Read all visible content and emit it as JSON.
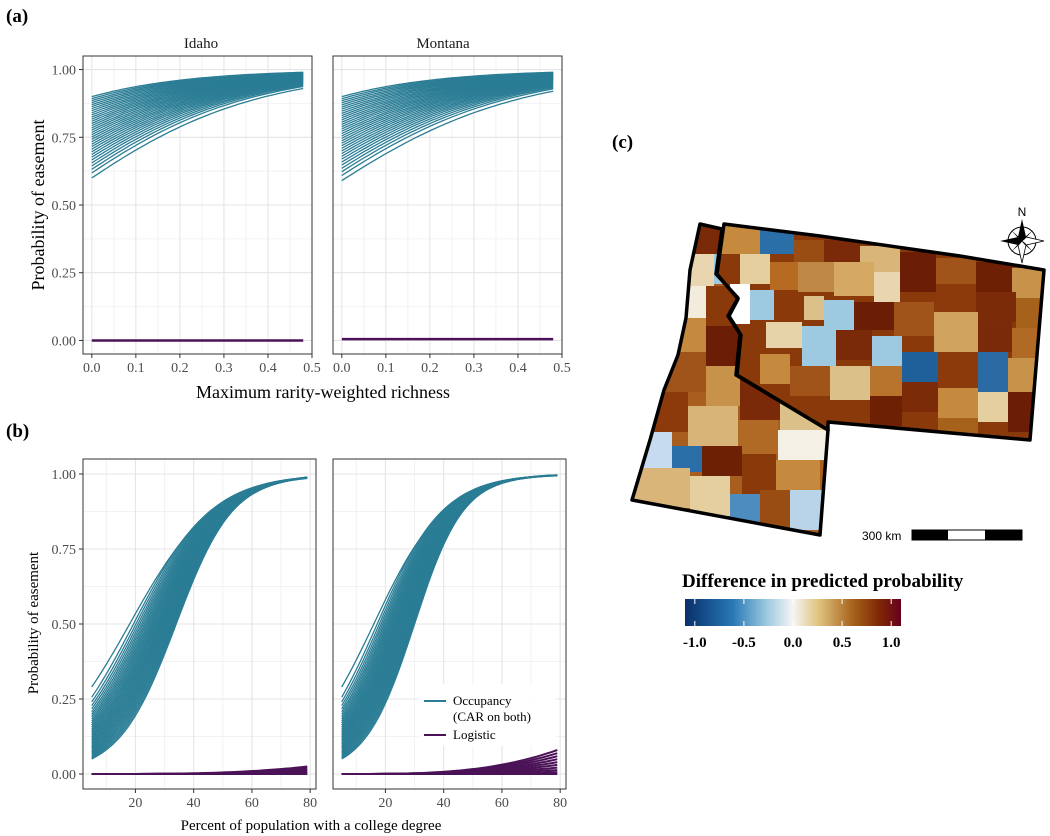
{
  "panels": {
    "a": "(a)",
    "b": "(b)",
    "c": "(c)"
  },
  "colors": {
    "occupancy": "#2a7d95",
    "logistic": "#4b1257",
    "grid_major": "#e5e5e5",
    "grid_minor": "#f2f2f2",
    "frame": "#333333"
  },
  "chart_data": [
    {
      "id": "a",
      "type": "line",
      "facets": [
        "Idaho",
        "Montana"
      ],
      "xlabel": "Maximum rarity-weighted richness",
      "ylabel": "Probability of easement",
      "xlim": [
        -0.02,
        0.5
      ],
      "ylim": [
        -0.05,
        1.05
      ],
      "xticks": [
        "0.0",
        "0.1",
        "0.2",
        "0.3",
        "0.4",
        "0.5"
      ],
      "xtick_values": [
        0,
        0.1,
        0.2,
        0.3,
        0.4,
        0.5
      ],
      "yticks": [
        "0.00",
        "0.25",
        "0.50",
        "0.75",
        "1.00"
      ],
      "ytick_values": [
        0,
        0.25,
        0.5,
        0.75,
        1.0
      ],
      "x_range": [
        0,
        0.48
      ],
      "series": [
        {
          "facet": "Idaho",
          "model": "Occupancy",
          "start_min": 0.6,
          "start_max": 0.9,
          "end_min": 0.93,
          "end_max": 0.99,
          "count": 34
        },
        {
          "facet": "Idaho",
          "model": "Logistic",
          "value": 0.0,
          "count": 1
        },
        {
          "facet": "Montana",
          "model": "Occupancy",
          "start_min": 0.59,
          "start_max": 0.9,
          "end_min": 0.92,
          "end_max": 0.99,
          "count": 34
        },
        {
          "facet": "Montana",
          "model": "Logistic",
          "value": 0.005,
          "count": 1
        }
      ]
    },
    {
      "id": "b",
      "type": "line",
      "facets": [
        "",
        ""
      ],
      "xlabel": "Percent of population with a college degree",
      "ylabel": "Probability of easement",
      "xlim": [
        2,
        82
      ],
      "ylim": [
        -0.05,
        1.05
      ],
      "xticks": [
        "20",
        "40",
        "60",
        "80"
      ],
      "xtick_values": [
        20,
        40,
        60,
        80
      ],
      "yticks": [
        "0.00",
        "0.25",
        "0.50",
        "0.75",
        "1.00"
      ],
      "ytick_values": [
        0,
        0.25,
        0.5,
        0.75,
        1.0
      ],
      "x_range": [
        5,
        79
      ],
      "series": [
        {
          "facet": "left",
          "model": "Occupancy",
          "start_min": 0.05,
          "start_max": 0.29,
          "end": 1.0,
          "count": 36
        },
        {
          "facet": "left",
          "model": "Logistic",
          "start": 0.0,
          "end_max": 0.025,
          "count": 6
        },
        {
          "facet": "right",
          "model": "Occupancy",
          "start_min": 0.05,
          "start_max": 0.29,
          "end": 1.0,
          "count": 36
        },
        {
          "facet": "right",
          "model": "Logistic",
          "start": 0.0,
          "end_max": 0.08,
          "count": 10
        }
      ],
      "legend": [
        {
          "label_line1": "Occupancy",
          "label_line2": "(CAR on both)",
          "color": "#2a7d95"
        },
        {
          "label_line1": "Logistic",
          "label_line2": "",
          "color": "#4b1257"
        }
      ]
    },
    {
      "id": "c",
      "type": "heatmap",
      "title": "Difference in predicted probability",
      "colorbar_ticks": [
        "-1.0",
        "-0.5",
        "0.0",
        "0.5",
        "1.0"
      ],
      "colorbar_values": [
        -1.0,
        -0.5,
        0.0,
        0.5,
        1.0
      ],
      "colorbar_stops": [
        "#08306b",
        "#2878b5",
        "#9ecae1",
        "#f5f5f5",
        "#dfc27d",
        "#a6611a",
        "#7f2704",
        "#67001f"
      ],
      "scale_bar": "300 km",
      "compass": "N"
    }
  ]
}
